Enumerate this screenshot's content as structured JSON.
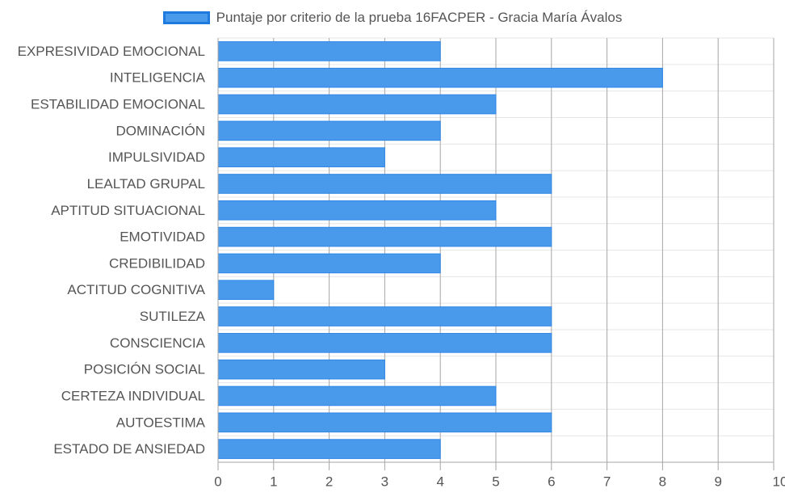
{
  "chart_data": {
    "type": "bar",
    "orientation": "horizontal",
    "series": [
      {
        "name": "Puntaje por criterio de la prueba 16FACPER - Gracia María Ávalos",
        "values": [
          4,
          8,
          5,
          4,
          3,
          6,
          5,
          6,
          4,
          1,
          6,
          6,
          3,
          5,
          6,
          4
        ]
      }
    ],
    "categories": [
      "EXPRESIVIDAD EMOCIONAL",
      "INTELIGENCIA",
      "ESTABILIDAD EMOCIONAL",
      "DOMINACIÓN",
      "IMPULSIVIDAD",
      "LEALTAD GRUPAL",
      "APTITUD SITUACIONAL",
      "EMOTIVIDAD",
      "CREDIBILIDAD",
      "ACTITUD COGNITIVA",
      "SUTILEZA",
      "CONSCIENCIA",
      "POSICIÓN SOCIAL",
      "CERTEZA INDIVIDUAL",
      "AUTOESTIMA",
      "ESTADO DE ANSIEDAD"
    ],
    "xlim": [
      0,
      10
    ],
    "xticks": [
      "0",
      "1",
      "2",
      "3",
      "4",
      "5",
      "6",
      "7",
      "8",
      "9",
      "10"
    ],
    "grid": true,
    "legend_position": "top",
    "colors": {
      "bar_fill": "#4a9aec",
      "bar_border": "#2f86e6",
      "legend_border": "#1f7ae0",
      "grid_major": "#a6a6a6",
      "grid_minor": "#e6e6e6",
      "text": "#555555"
    }
  }
}
